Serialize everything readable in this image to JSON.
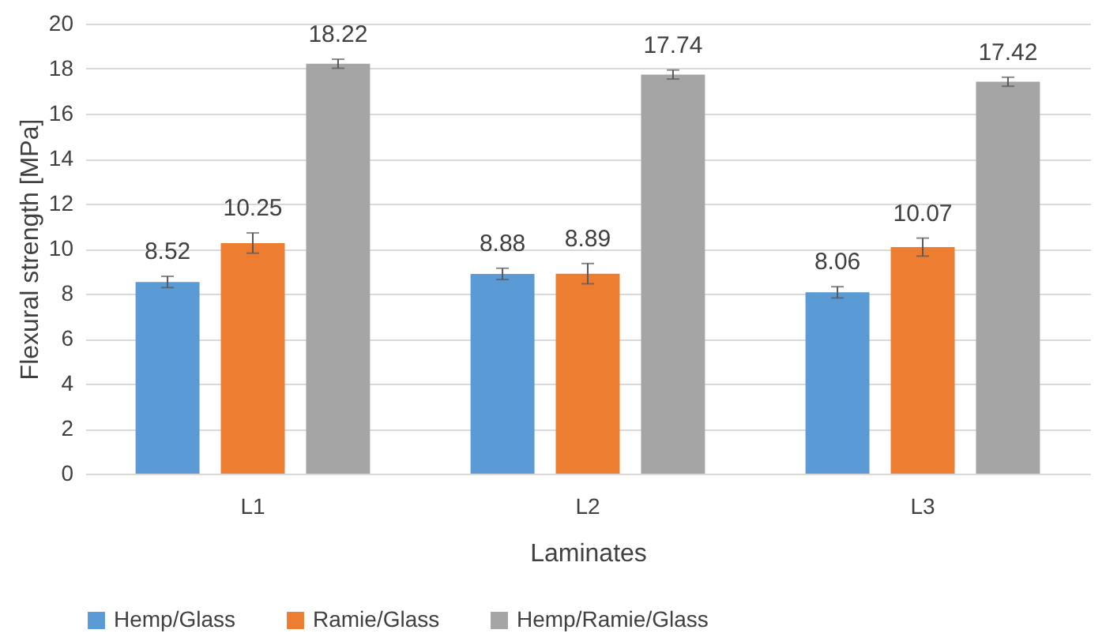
{
  "chart_data": {
    "type": "bar",
    "xlabel": "Laminates",
    "ylabel": "Flexural strength [MPa]",
    "categories": [
      "L1",
      "L2",
      "L3"
    ],
    "series": [
      {
        "name": "Hemp/Glass",
        "color": "#5b9bd5",
        "values": [
          8.52,
          8.88,
          8.06
        ],
        "errors": [
          0.25,
          0.25,
          0.25
        ]
      },
      {
        "name": "Ramie/Glass",
        "color": "#ed7d31",
        "values": [
          10.25,
          8.89,
          10.07
        ],
        "errors": [
          0.45,
          0.45,
          0.4
        ]
      },
      {
        "name": "Hemp/Ramie/Glass",
        "color": "#a5a5a5",
        "values": [
          18.22,
          17.74,
          17.42
        ],
        "errors": [
          0.2,
          0.2,
          0.2
        ]
      }
    ],
    "ylim": [
      0,
      20
    ],
    "yticks": [
      0,
      2,
      4,
      6,
      8,
      10,
      12,
      14,
      16,
      18,
      20
    ],
    "grid": "y",
    "legend": "bottom",
    "data_labels": true
  }
}
